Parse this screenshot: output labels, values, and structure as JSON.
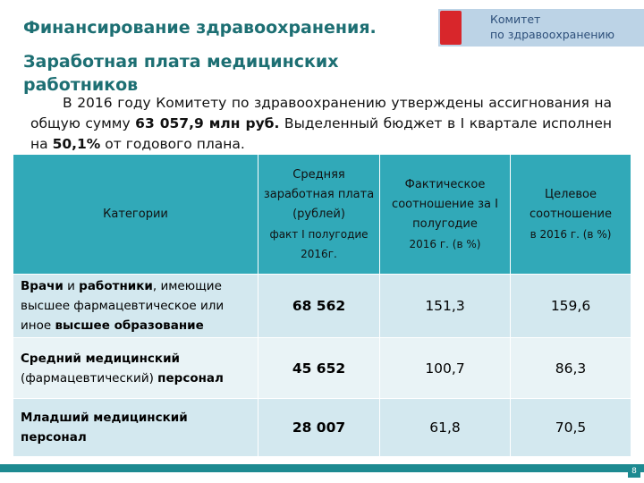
{
  "header": {
    "title": "Финансирование здравоохранения.",
    "subtitle": "Заработная плата медицинских работников",
    "logo": [
      "Комитет",
      "по здравоохранению"
    ]
  },
  "intro": [
    {
      "text": "В 2016 году Комитету по здравоохранению утверждены ассигнования на общую сумму ",
      "bold": false
    },
    {
      "text": "63 057,9 млн руб.",
      "bold": true
    },
    {
      "text": " Выделенный бюджет в I квартале исполнен на ",
      "bold": false
    },
    {
      "text": "50,1%",
      "bold": true
    },
    {
      "text": " от годового плана.",
      "bold": false
    }
  ],
  "table": {
    "columns": [
      [
        "Категории"
      ],
      [
        "Средняя заработная плата (рублей)",
        "факт I полугодие 2016г."
      ],
      [
        "Фактическое соотношение за I полугодие",
        "2016 г. (в %)"
      ],
      [
        "Целевое соотношение",
        "в 2016 г. (в %)"
      ]
    ],
    "rows": [
      {
        "category": [
          {
            "text": "Врачи",
            "bold": true
          },
          {
            "text": " и ",
            "bold": false
          },
          {
            "text": "работники",
            "bold": true
          },
          {
            "text": ", имеющие высшее фармацевтическое или иное ",
            "bold": false
          },
          {
            "text": "высшее образование",
            "bold": true
          }
        ],
        "values": [
          "68 562",
          "151,3",
          "159,6"
        ]
      },
      {
        "category": [
          {
            "text": "Средний медицинский",
            "bold": true
          },
          {
            "text": " (фармацевтический) ",
            "bold": false
          },
          {
            "text": "персонал",
            "bold": true
          }
        ],
        "values": [
          "45 652",
          "100,7",
          "86,3"
        ]
      },
      {
        "category": [
          {
            "text": "Младший медицинский персонал",
            "bold": true
          }
        ],
        "values": [
          "28 007",
          "61,8",
          "70,5"
        ]
      }
    ]
  },
  "page_number": "8"
}
